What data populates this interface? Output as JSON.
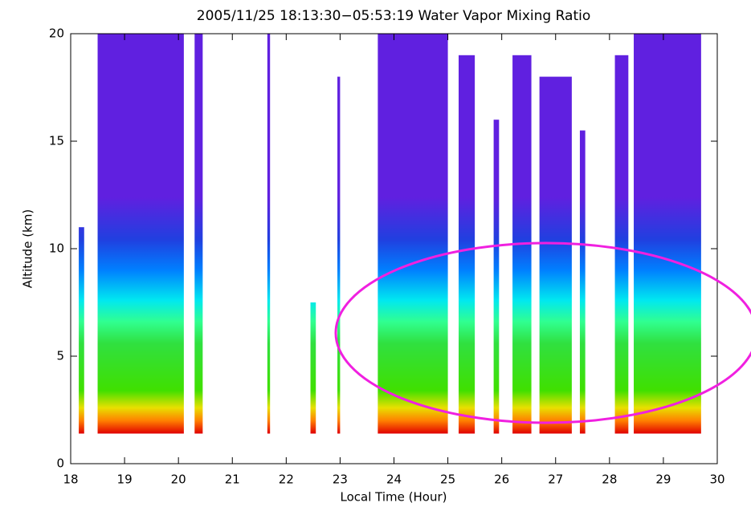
{
  "chart_data": {
    "type": "heatmap",
    "title": "2005/11/25 18:13:30−05:53:19 Water Vapor Mixing Ratio",
    "xlabel": "Local Time (Hour)",
    "ylabel": "Altitude (km)",
    "xlim": [
      18,
      30
    ],
    "ylim": [
      0,
      20
    ],
    "xticks": [
      18,
      19,
      20,
      21,
      22,
      23,
      24,
      25,
      26,
      27,
      28,
      29,
      30
    ],
    "yticks": [
      0,
      5,
      10,
      15,
      20
    ],
    "columns": [
      {
        "start": 18.15,
        "end": 18.25,
        "bottom": 1.4,
        "top": 11
      },
      {
        "start": 18.5,
        "end": 20.1,
        "bottom": 1.4,
        "top": 20
      },
      {
        "start": 20.3,
        "end": 20.45,
        "bottom": 1.4,
        "top": 20
      },
      {
        "start": 21.65,
        "end": 21.7,
        "bottom": 1.4,
        "top": 20
      },
      {
        "start": 22.45,
        "end": 22.55,
        "bottom": 1.4,
        "top": 7.5
      },
      {
        "start": 22.95,
        "end": 23.0,
        "bottom": 1.4,
        "top": 18
      },
      {
        "start": 23.7,
        "end": 25.0,
        "bottom": 1.4,
        "top": 20
      },
      {
        "start": 25.2,
        "end": 25.5,
        "bottom": 1.4,
        "top": 19
      },
      {
        "start": 25.85,
        "end": 25.95,
        "bottom": 1.4,
        "top": 16
      },
      {
        "start": 26.2,
        "end": 26.55,
        "bottom": 1.4,
        "top": 19
      },
      {
        "start": 26.7,
        "end": 27.3,
        "bottom": 1.4,
        "top": 18
      },
      {
        "start": 27.45,
        "end": 27.55,
        "bottom": 1.4,
        "top": 15.5
      },
      {
        "start": 28.1,
        "end": 28.35,
        "bottom": 1.4,
        "top": 19
      },
      {
        "start": 28.45,
        "end": 29.7,
        "bottom": 1.4,
        "top": 20
      }
    ]
  }
}
